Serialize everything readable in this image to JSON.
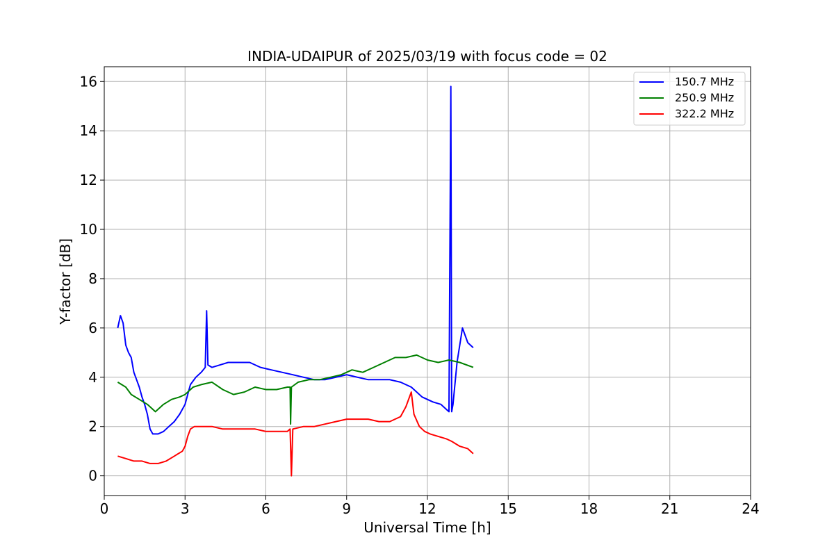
{
  "chart_data": {
    "type": "line",
    "title": "INDIA-UDAIPUR of 2025/03/19 with focus code = 02",
    "xlabel": "Universal Time [h]",
    "ylabel": "Y-factor [dB]",
    "xlim": [
      0,
      24
    ],
    "ylim": [
      -0.8,
      16.6
    ],
    "xticks": [
      0,
      3,
      6,
      9,
      12,
      15,
      18,
      21,
      24
    ],
    "yticks": [
      0,
      2,
      4,
      6,
      8,
      10,
      12,
      14,
      16
    ],
    "grid": true,
    "legend_position": "top-right",
    "series": [
      {
        "name": "150.7 MHz",
        "color": "#0000ff",
        "x": [
          0.5,
          0.6,
          0.7,
          0.8,
          0.9,
          1.0,
          1.1,
          1.2,
          1.3,
          1.4,
          1.5,
          1.6,
          1.7,
          1.8,
          2.0,
          2.2,
          2.4,
          2.6,
          2.8,
          3.0,
          3.1,
          3.2,
          3.4,
          3.6,
          3.75,
          3.8,
          3.85,
          4.0,
          4.3,
          4.6,
          5.0,
          5.4,
          5.8,
          6.2,
          6.6,
          7.0,
          7.4,
          7.8,
          8.2,
          8.6,
          9.0,
          9.4,
          9.8,
          10.2,
          10.6,
          11.0,
          11.4,
          11.8,
          12.2,
          12.5,
          12.7,
          12.8,
          12.87,
          12.9,
          12.95,
          13.1,
          13.3,
          13.5,
          13.7
        ],
        "y": [
          6.0,
          6.5,
          6.2,
          5.3,
          5.0,
          4.8,
          4.2,
          3.9,
          3.6,
          3.2,
          2.9,
          2.5,
          1.9,
          1.7,
          1.7,
          1.8,
          2.0,
          2.2,
          2.5,
          2.9,
          3.3,
          3.7,
          4.0,
          4.2,
          4.4,
          6.7,
          4.5,
          4.4,
          4.5,
          4.6,
          4.6,
          4.6,
          4.4,
          4.3,
          4.2,
          4.1,
          4.0,
          3.9,
          3.9,
          4.0,
          4.1,
          4.0,
          3.9,
          3.9,
          3.9,
          3.8,
          3.6,
          3.2,
          3.0,
          2.9,
          2.7,
          2.6,
          15.8,
          2.6,
          2.9,
          4.6,
          6.0,
          5.4,
          5.2
        ]
      },
      {
        "name": "250.9 MHz",
        "color": "#008000",
        "x": [
          0.5,
          0.8,
          1.0,
          1.3,
          1.6,
          1.9,
          2.2,
          2.5,
          2.8,
          3.0,
          3.3,
          3.6,
          4.0,
          4.4,
          4.8,
          5.2,
          5.6,
          6.0,
          6.4,
          6.8,
          6.9,
          6.92,
          6.95,
          7.2,
          7.6,
          8.0,
          8.4,
          8.8,
          9.2,
          9.6,
          10.0,
          10.4,
          10.8,
          11.2,
          11.6,
          12.0,
          12.4,
          12.8,
          13.2,
          13.7
        ],
        "y": [
          3.8,
          3.6,
          3.3,
          3.1,
          2.9,
          2.6,
          2.9,
          3.1,
          3.2,
          3.3,
          3.6,
          3.7,
          3.8,
          3.5,
          3.3,
          3.4,
          3.6,
          3.5,
          3.5,
          3.6,
          3.6,
          2.1,
          3.6,
          3.8,
          3.9,
          3.9,
          4.0,
          4.1,
          4.3,
          4.2,
          4.4,
          4.6,
          4.8,
          4.8,
          4.9,
          4.7,
          4.6,
          4.7,
          4.6,
          4.4
        ]
      },
      {
        "name": "322.2 MHz",
        "color": "#ff0000",
        "x": [
          0.5,
          0.8,
          1.1,
          1.4,
          1.7,
          2.0,
          2.3,
          2.6,
          2.9,
          3.0,
          3.1,
          3.2,
          3.35,
          3.6,
          4.0,
          4.4,
          4.8,
          5.2,
          5.6,
          6.0,
          6.4,
          6.8,
          6.9,
          6.95,
          7.0,
          7.4,
          7.8,
          8.2,
          8.6,
          9.0,
          9.4,
          9.8,
          10.2,
          10.6,
          11.0,
          11.2,
          11.4,
          11.5,
          11.7,
          11.9,
          12.1,
          12.4,
          12.7,
          12.9,
          13.2,
          13.5,
          13.7
        ],
        "y": [
          0.8,
          0.7,
          0.6,
          0.6,
          0.5,
          0.5,
          0.6,
          0.8,
          1.0,
          1.2,
          1.6,
          1.9,
          2.0,
          2.0,
          2.0,
          1.9,
          1.9,
          1.9,
          1.9,
          1.8,
          1.8,
          1.8,
          1.9,
          0.0,
          1.9,
          2.0,
          2.0,
          2.1,
          2.2,
          2.3,
          2.3,
          2.3,
          2.2,
          2.2,
          2.4,
          2.8,
          3.4,
          2.5,
          2.0,
          1.8,
          1.7,
          1.6,
          1.5,
          1.4,
          1.2,
          1.1,
          0.9
        ]
      }
    ]
  }
}
